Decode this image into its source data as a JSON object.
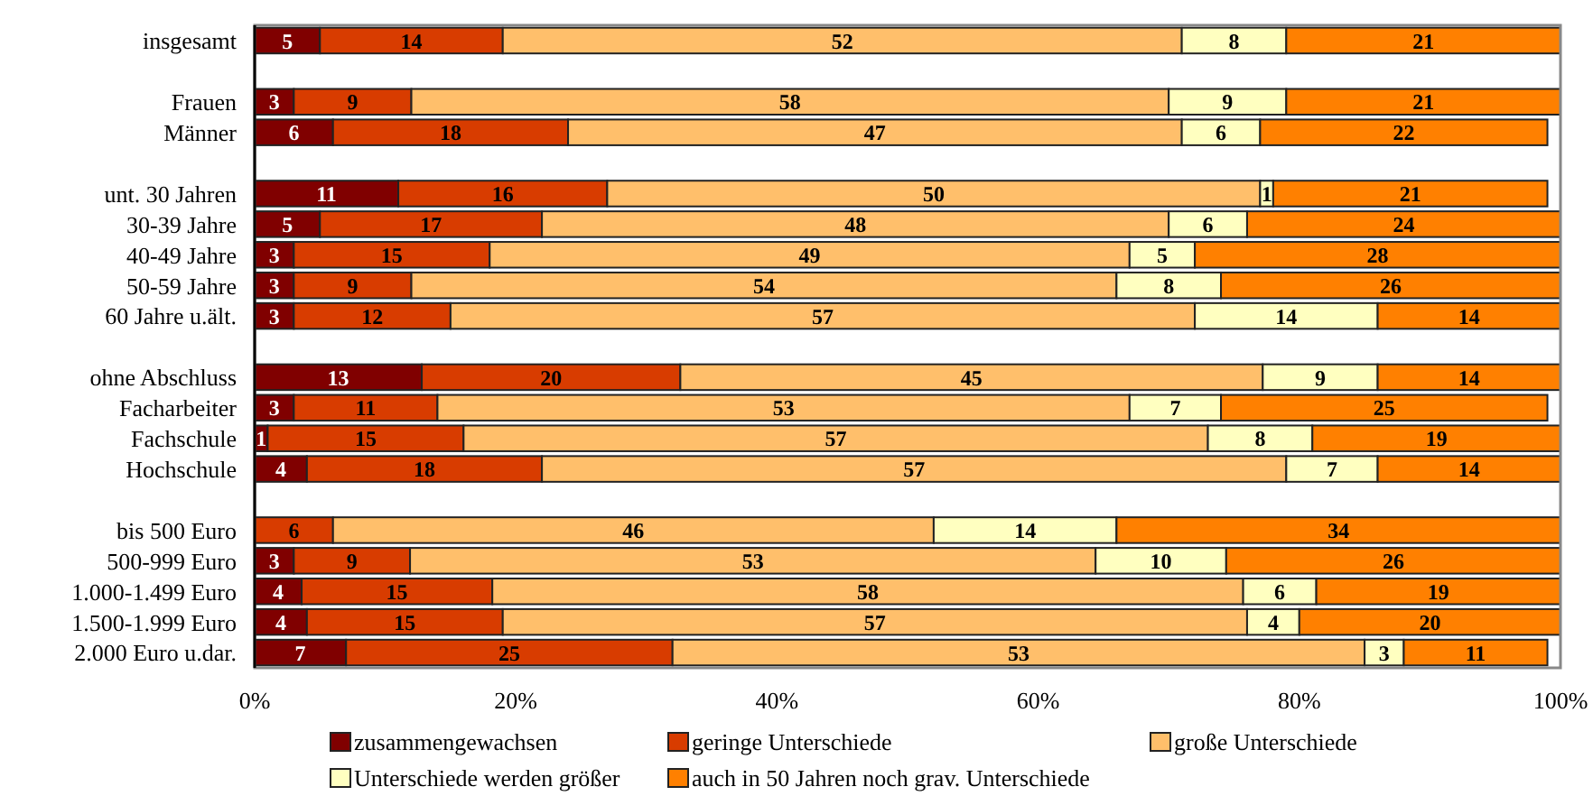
{
  "chart_data": {
    "type": "bar",
    "orientation": "horizontal",
    "stacked": true,
    "categories": [
      "insgesamt",
      null,
      "Frauen",
      "Männer",
      null,
      "unt. 30 Jahren",
      "30-39 Jahre",
      "40-49 Jahre",
      "50-59 Jahre",
      "60 Jahre u.ält.",
      null,
      "ohne Abschluss",
      "Facharbeiter",
      "Fachschule",
      "Hochschule",
      null,
      "bis 500 Euro",
      "500-999 Euro",
      "1.000-1.499 Euro",
      "1.500-1.999 Euro",
      "2.000 Euro u.dar."
    ],
    "series": [
      {
        "name": "zusammengewachsen",
        "color": "#800000",
        "values": [
          5,
          null,
          3,
          6,
          null,
          11,
          5,
          3,
          3,
          3,
          null,
          12.8,
          3,
          1,
          4,
          null,
          null,
          3,
          3.6,
          4,
          7
        ],
        "value_labels": [
          "5",
          null,
          "3",
          "6",
          null,
          "11",
          "5",
          "3",
          "3",
          "3",
          null,
          "13",
          "3",
          "1",
          "4",
          null,
          null,
          "3",
          "4",
          "4",
          "7"
        ]
      },
      {
        "name": "geringe Unterschiede",
        "color": "#d83c00",
        "values": [
          14,
          null,
          9,
          18,
          null,
          16,
          17,
          15,
          9,
          12,
          null,
          19.8,
          11,
          15,
          18,
          null,
          6,
          8.9,
          14.6,
          15,
          25
        ],
        "value_labels": [
          "14",
          null,
          "9",
          "18",
          null,
          "16",
          "17",
          "15",
          "9",
          "12",
          null,
          "20",
          "11",
          "15",
          "18",
          null,
          "6",
          "9",
          "15",
          "15",
          "25"
        ]
      },
      {
        "name": "große Unterschiede",
        "color": "#ffbf6b",
        "values": [
          52,
          null,
          58,
          47,
          null,
          50,
          48,
          49,
          54,
          57,
          null,
          44.6,
          53,
          57,
          57,
          null,
          46,
          52.5,
          57.5,
          57,
          53
        ],
        "value_labels": [
          "52",
          null,
          "58",
          "47",
          null,
          "50",
          "48",
          "49",
          "54",
          "57",
          null,
          "45",
          "53",
          "57",
          "57",
          null,
          "46",
          "53",
          "58",
          "57",
          "53"
        ]
      },
      {
        "name": "Unterschiede werden größer",
        "color": "#ffffc0",
        "values": [
          8,
          null,
          9,
          6,
          null,
          1,
          6,
          5,
          8,
          14,
          null,
          8.8,
          7,
          8,
          7,
          null,
          14,
          10,
          5.6,
          4,
          3
        ],
        "value_labels": [
          "8",
          null,
          "9",
          "6",
          null,
          "1",
          "6",
          "5",
          "8",
          "14",
          null,
          "9",
          "7",
          "8",
          "7",
          null,
          "14",
          "10",
          "6",
          "4",
          "3"
        ]
      },
      {
        "name": "auch in 50 Jahren noch grav. Unterschiede",
        "color": "#ff8000",
        "values": [
          21,
          null,
          21,
          22,
          null,
          21,
          24,
          28,
          26,
          14,
          null,
          14,
          25,
          19,
          14,
          null,
          34,
          25.6,
          18.7,
          20,
          11
        ],
        "value_labels": [
          "21",
          null,
          "21",
          "22",
          null,
          "21",
          "24",
          "28",
          "26",
          "14",
          null,
          "14",
          "25",
          "19",
          "14",
          null,
          "34",
          "26",
          "19",
          "20",
          "11"
        ]
      }
    ],
    "xlim": [
      0,
      100
    ],
    "xticks": [
      {
        "value": 0,
        "label": "0%"
      },
      {
        "value": 20,
        "label": "20%"
      },
      {
        "value": 40,
        "label": "40%"
      },
      {
        "value": 60,
        "label": "60%"
      },
      {
        "value": 80,
        "label": "80%"
      },
      {
        "value": 100,
        "label": "100%"
      }
    ],
    "grid": false,
    "legend": "bottom"
  }
}
